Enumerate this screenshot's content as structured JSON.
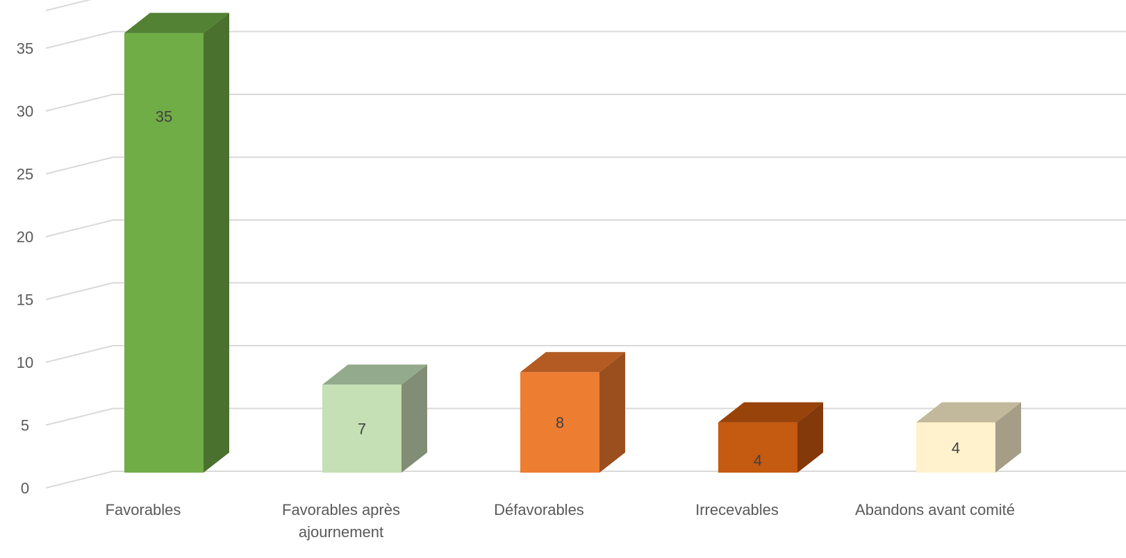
{
  "chart_data": {
    "type": "bar",
    "style": "3d-column",
    "categories": [
      "Favorables",
      "Favorables après ajournement",
      "Défavorables",
      "Irrecevables",
      "Abandons avant comité"
    ],
    "values": [
      35,
      7,
      8,
      4,
      4
    ],
    "data_labels": [
      "35",
      "7",
      "8",
      "4",
      "4"
    ],
    "yticks": [
      0,
      5,
      10,
      15,
      20,
      25,
      30,
      35
    ],
    "ylim": [
      0,
      38
    ],
    "grid": true,
    "legend": "none",
    "colors": [
      {
        "front": "#70ad47",
        "side": "#4a722e",
        "top": "#548235"
      },
      {
        "front": "#c5e0b4",
        "side": "#818d75",
        "top": "#93ab8c"
      },
      {
        "front": "#ed7d31",
        "side": "#9b4f1e",
        "top": "#b35b22"
      },
      {
        "front": "#c55a11",
        "side": "#84390a",
        "top": "#984309"
      },
      {
        "front": "#fff2cc",
        "side": "#a59d86",
        "top": "#c2b89b"
      }
    ]
  }
}
